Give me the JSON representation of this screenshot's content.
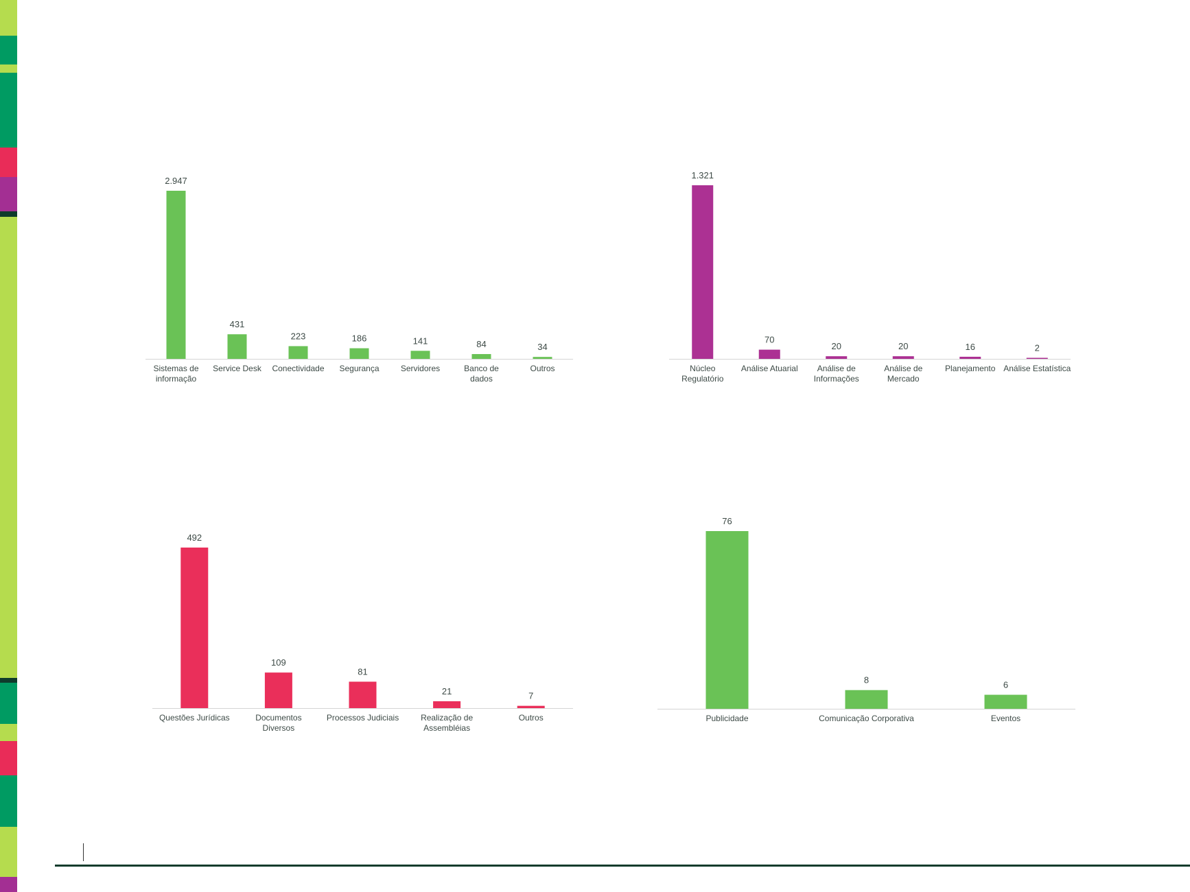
{
  "colors": {
    "lime": "#b5dc4e",
    "teal": "#009b62",
    "crimson": "#e92c58",
    "purple": "#a32f93",
    "dark": "#0e3b2b",
    "green_bar": "#6ac256",
    "purple_bar": "#ac3193",
    "red_bar": "#ea2f5a",
    "axis": "#d4d4d4"
  },
  "sidebar_strips": [
    {
      "top": 0,
      "bottom": 52,
      "color": "lime"
    },
    {
      "top": 52,
      "bottom": 94,
      "color": "teal"
    },
    {
      "top": 94,
      "bottom": 106,
      "color": "lime"
    },
    {
      "top": 106,
      "bottom": 215,
      "color": "teal"
    },
    {
      "top": 215,
      "bottom": 258,
      "color": "crimson"
    },
    {
      "top": 258,
      "bottom": 308,
      "color": "purple"
    },
    {
      "top": 308,
      "bottom": 316,
      "color": "dark"
    },
    {
      "top": 316,
      "bottom": 988,
      "color": "lime"
    },
    {
      "top": 988,
      "bottom": 995,
      "color": "dark"
    },
    {
      "top": 995,
      "bottom": 1055,
      "color": "teal"
    },
    {
      "top": 1055,
      "bottom": 1080,
      "color": "lime"
    },
    {
      "top": 1080,
      "bottom": 1130,
      "color": "crimson"
    },
    {
      "top": 1130,
      "bottom": 1205,
      "color": "teal"
    },
    {
      "top": 1205,
      "bottom": 1278,
      "color": "lime"
    },
    {
      "top": 1278,
      "bottom": 1300,
      "color": "purple"
    }
  ],
  "chart_data": [
    {
      "type": "bar",
      "categories": [
        "Sistemas de\ninformação",
        "Service Desk",
        "Conectividade",
        "Segurança",
        "Servidores",
        "Banco de\ndados",
        "Outros"
      ],
      "values": [
        2947,
        431,
        223,
        186,
        141,
        84,
        34
      ],
      "value_labels": [
        "2.947",
        "431",
        "223",
        "186",
        "141",
        "84",
        "34"
      ],
      "color": "green_bar",
      "ylim": [
        0,
        2947
      ]
    },
    {
      "type": "bar",
      "categories": [
        "Núcleo\nRegulatório",
        "Análise Atuarial",
        "Análise de\nInformações",
        "Análise de\nMercado",
        "Planejamento",
        "Análise Estatística"
      ],
      "values": [
        1321,
        70,
        20,
        20,
        16,
        2
      ],
      "value_labels": [
        "1.321",
        "70",
        "20",
        "20",
        "16",
        "2"
      ],
      "color": "purple_bar",
      "ylim": [
        0,
        1321
      ]
    },
    {
      "type": "bar",
      "categories": [
        "Questões Jurídicas",
        "Documentos\nDiversos",
        "Processos Judiciais",
        "Realização de\nAssembléias",
        "Outros"
      ],
      "values": [
        492,
        109,
        81,
        21,
        7
      ],
      "value_labels": [
        "492",
        "109",
        "81",
        "21",
        "7"
      ],
      "color": "red_bar",
      "ylim": [
        0,
        492
      ]
    },
    {
      "type": "bar",
      "categories": [
        "Publicidade",
        "Comunicação Corporativa",
        "Eventos"
      ],
      "values": [
        76,
        8,
        6
      ],
      "value_labels": [
        "76",
        "8",
        "6"
      ],
      "color": "green_bar",
      "ylim": [
        0,
        76
      ]
    }
  ]
}
